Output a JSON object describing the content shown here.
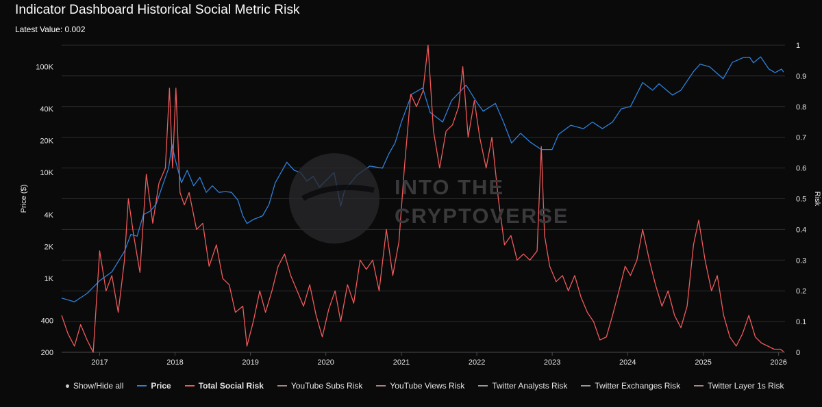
{
  "header": {
    "title": "Indicator Dashboard Historical Social Metric Risk",
    "latest_value": "Latest Value: 0.002"
  },
  "watermark": {
    "line1": "INTO THE",
    "line2": "CRYPTOVERSE"
  },
  "legend": {
    "show_hide_all": "Show/Hide all",
    "items": [
      {
        "label": "Price",
        "color": "#2f80d8",
        "bold": true
      },
      {
        "label": "Total Social Risk",
        "color": "#f05a5a",
        "bold": true
      },
      {
        "label": "YouTube Subs Risk",
        "color": "#b08484",
        "bold": false
      },
      {
        "label": "YouTube Views Risk",
        "color": "#b08484",
        "bold": false
      },
      {
        "label": "Twitter Analysts Risk",
        "color": "#9a9a9a",
        "bold": false
      },
      {
        "label": "Twitter Exchanges Risk",
        "color": "#9a9a9a",
        "bold": false
      },
      {
        "label": "Twitter Layer 1s Risk",
        "color": "#b08484",
        "bold": false
      }
    ]
  },
  "chart_data": {
    "type": "line",
    "title": "Indicator Dashboard Historical Social Metric Risk",
    "grid": true,
    "x_axis": {
      "type": "date",
      "range": [
        "2016-07-01",
        "2026-02-01"
      ],
      "tick_labels": [
        "2017",
        "2018",
        "2019",
        "2020",
        "2021",
        "2022",
        "2023",
        "2024",
        "2025",
        "2026"
      ]
    },
    "y_left": {
      "label": "Price ($)",
      "scale": "log",
      "range": [
        200,
        160000
      ],
      "tick_values": [
        200,
        400,
        1000,
        2000,
        4000,
        10000,
        20000,
        40000,
        100000
      ],
      "tick_labels": [
        "200",
        "400",
        "1K",
        "2K",
        "4K",
        "10K",
        "20K",
        "40K",
        "100K"
      ]
    },
    "y_right": {
      "label": "Risk",
      "scale": "linear",
      "range": [
        0,
        1
      ],
      "tick_values": [
        0,
        0.1,
        0.2,
        0.3,
        0.4,
        0.5,
        0.6,
        0.7,
        0.8,
        0.9,
        1
      ],
      "tick_labels": [
        "0",
        "0.1",
        "0.2",
        "0.3",
        "0.4",
        "0.5",
        "0.6",
        "0.7",
        "0.8",
        "0.9",
        "1"
      ]
    },
    "series": [
      {
        "name": "Price",
        "axis": "left",
        "color": "#2f80d8",
        "points": [
          [
            "2016-07-01",
            650
          ],
          [
            "2016-09-01",
            600
          ],
          [
            "2016-11-01",
            720
          ],
          [
            "2017-01-01",
            950
          ],
          [
            "2017-03-01",
            1150
          ],
          [
            "2017-05-01",
            1800
          ],
          [
            "2017-06-01",
            2600
          ],
          [
            "2017-07-01",
            2500
          ],
          [
            "2017-08-01",
            4000
          ],
          [
            "2017-09-01",
            4300
          ],
          [
            "2017-10-01",
            5000
          ],
          [
            "2017-11-01",
            7500
          ],
          [
            "2017-12-01",
            11000
          ],
          [
            "2017-12-17",
            18500
          ],
          [
            "2018-01-01",
            13500
          ],
          [
            "2018-02-01",
            8000
          ],
          [
            "2018-03-01",
            10500
          ],
          [
            "2018-04-01",
            7500
          ],
          [
            "2018-05-01",
            9000
          ],
          [
            "2018-06-01",
            6500
          ],
          [
            "2018-07-01",
            7500
          ],
          [
            "2018-08-01",
            6500
          ],
          [
            "2018-09-01",
            6600
          ],
          [
            "2018-10-01",
            6500
          ],
          [
            "2018-11-01",
            5500
          ],
          [
            "2018-11-25",
            3900
          ],
          [
            "2018-12-15",
            3300
          ],
          [
            "2019-01-15",
            3600
          ],
          [
            "2019-03-01",
            3900
          ],
          [
            "2019-04-01",
            5000
          ],
          [
            "2019-05-01",
            8000
          ],
          [
            "2019-06-26",
            12500
          ],
          [
            "2019-08-01",
            10500
          ],
          [
            "2019-09-01",
            10000
          ],
          [
            "2019-10-01",
            8300
          ],
          [
            "2019-11-01",
            9200
          ],
          [
            "2019-12-01",
            7300
          ],
          [
            "2020-02-10",
            10000
          ],
          [
            "2020-03-13",
            4800
          ],
          [
            "2020-04-01",
            6800
          ],
          [
            "2020-06-01",
            9500
          ],
          [
            "2020-08-01",
            11500
          ],
          [
            "2020-10-01",
            11000
          ],
          [
            "2020-11-01",
            15000
          ],
          [
            "2020-12-01",
            19000
          ],
          [
            "2021-01-01",
            30000
          ],
          [
            "2021-02-20",
            55000
          ],
          [
            "2021-04-14",
            63000
          ],
          [
            "2021-05-20",
            37000
          ],
          [
            "2021-07-20",
            30000
          ],
          [
            "2021-09-01",
            48000
          ],
          [
            "2021-11-10",
            67000
          ],
          [
            "2022-01-01",
            46000
          ],
          [
            "2022-02-01",
            38000
          ],
          [
            "2022-04-01",
            45000
          ],
          [
            "2022-05-10",
            30000
          ],
          [
            "2022-06-18",
            19000
          ],
          [
            "2022-08-01",
            23500
          ],
          [
            "2022-09-15",
            19500
          ],
          [
            "2022-11-09",
            16500
          ],
          [
            "2022-12-31",
            16500
          ],
          [
            "2023-02-01",
            23000
          ],
          [
            "2023-04-01",
            28000
          ],
          [
            "2023-06-01",
            26000
          ],
          [
            "2023-07-15",
            30000
          ],
          [
            "2023-09-01",
            26000
          ],
          [
            "2023-10-20",
            30000
          ],
          [
            "2023-12-01",
            40000
          ],
          [
            "2024-01-15",
            42000
          ],
          [
            "2024-03-14",
            71000
          ],
          [
            "2024-05-01",
            60000
          ],
          [
            "2024-06-01",
            69000
          ],
          [
            "2024-08-05",
            54000
          ],
          [
            "2024-09-15",
            60000
          ],
          [
            "2024-11-15",
            90000
          ],
          [
            "2024-12-17",
            106000
          ],
          [
            "2025-02-01",
            100000
          ],
          [
            "2025-04-08",
            77000
          ],
          [
            "2025-05-22",
            110000
          ],
          [
            "2025-07-14",
            122000
          ],
          [
            "2025-08-14",
            123000
          ],
          [
            "2025-09-01",
            109000
          ],
          [
            "2025-10-06",
            124000
          ],
          [
            "2025-11-15",
            95000
          ],
          [
            "2025-12-15",
            88000
          ],
          [
            "2026-01-15",
            95000
          ],
          [
            "2026-01-25",
            89000
          ]
        ]
      },
      {
        "name": "Total Social Risk",
        "axis": "right",
        "color": "#f05a5a",
        "points": [
          [
            "2016-07-01",
            0.12
          ],
          [
            "2016-08-01",
            0.06
          ],
          [
            "2016-09-01",
            0.02
          ],
          [
            "2016-10-01",
            0.09
          ],
          [
            "2016-11-01",
            0.04
          ],
          [
            "2016-12-01",
            0.0
          ],
          [
            "2017-01-01",
            0.33
          ],
          [
            "2017-02-01",
            0.2
          ],
          [
            "2017-03-01",
            0.25
          ],
          [
            "2017-04-01",
            0.13
          ],
          [
            "2017-05-01",
            0.3
          ],
          [
            "2017-05-20",
            0.5
          ],
          [
            "2017-06-15",
            0.38
          ],
          [
            "2017-07-15",
            0.26
          ],
          [
            "2017-08-15",
            0.58
          ],
          [
            "2017-09-15",
            0.42
          ],
          [
            "2017-10-15",
            0.55
          ],
          [
            "2017-11-15",
            0.6
          ],
          [
            "2017-12-05",
            0.86
          ],
          [
            "2017-12-20",
            0.6
          ],
          [
            "2018-01-05",
            0.86
          ],
          [
            "2018-01-25",
            0.52
          ],
          [
            "2018-02-15",
            0.48
          ],
          [
            "2018-03-10",
            0.52
          ],
          [
            "2018-04-15",
            0.4
          ],
          [
            "2018-05-15",
            0.42
          ],
          [
            "2018-06-15",
            0.28
          ],
          [
            "2018-07-20",
            0.35
          ],
          [
            "2018-08-20",
            0.24
          ],
          [
            "2018-09-20",
            0.22
          ],
          [
            "2018-10-20",
            0.13
          ],
          [
            "2018-11-25",
            0.15
          ],
          [
            "2018-12-15",
            0.02
          ],
          [
            "2019-01-15",
            0.1
          ],
          [
            "2019-02-15",
            0.2
          ],
          [
            "2019-03-15",
            0.13
          ],
          [
            "2019-04-15",
            0.2
          ],
          [
            "2019-05-15",
            0.28
          ],
          [
            "2019-06-15",
            0.32
          ],
          [
            "2019-07-15",
            0.25
          ],
          [
            "2019-08-15",
            0.2
          ],
          [
            "2019-09-15",
            0.15
          ],
          [
            "2019-10-15",
            0.22
          ],
          [
            "2019-11-15",
            0.12
          ],
          [
            "2019-12-15",
            0.05
          ],
          [
            "2020-01-15",
            0.14
          ],
          [
            "2020-02-15",
            0.2
          ],
          [
            "2020-03-13",
            0.1
          ],
          [
            "2020-04-15",
            0.22
          ],
          [
            "2020-05-15",
            0.16
          ],
          [
            "2020-06-15",
            0.3
          ],
          [
            "2020-07-15",
            0.27
          ],
          [
            "2020-08-15",
            0.3
          ],
          [
            "2020-09-15",
            0.2
          ],
          [
            "2020-10-20",
            0.4
          ],
          [
            "2020-11-20",
            0.25
          ],
          [
            "2020-12-20",
            0.36
          ],
          [
            "2021-01-15",
            0.6
          ],
          [
            "2021-02-15",
            0.84
          ],
          [
            "2021-03-15",
            0.8
          ],
          [
            "2021-04-15",
            0.85
          ],
          [
            "2021-05-10",
            1.0
          ],
          [
            "2021-06-05",
            0.72
          ],
          [
            "2021-07-05",
            0.6
          ],
          [
            "2021-08-05",
            0.72
          ],
          [
            "2021-09-05",
            0.74
          ],
          [
            "2021-10-05",
            0.8
          ],
          [
            "2021-10-25",
            0.93
          ],
          [
            "2021-11-20",
            0.7
          ],
          [
            "2021-12-20",
            0.82
          ],
          [
            "2022-01-15",
            0.7
          ],
          [
            "2022-02-15",
            0.6
          ],
          [
            "2022-03-15",
            0.7
          ],
          [
            "2022-04-15",
            0.5
          ],
          [
            "2022-05-15",
            0.35
          ],
          [
            "2022-06-15",
            0.38
          ],
          [
            "2022-07-15",
            0.3
          ],
          [
            "2022-08-15",
            0.32
          ],
          [
            "2022-09-15",
            0.3
          ],
          [
            "2022-10-20",
            0.33
          ],
          [
            "2022-11-09",
            0.67
          ],
          [
            "2022-11-25",
            0.38
          ],
          [
            "2022-12-20",
            0.28
          ],
          [
            "2023-01-20",
            0.23
          ],
          [
            "2023-02-20",
            0.25
          ],
          [
            "2023-03-20",
            0.2
          ],
          [
            "2023-04-20",
            0.25
          ],
          [
            "2023-05-20",
            0.18
          ],
          [
            "2023-06-20",
            0.13
          ],
          [
            "2023-07-20",
            0.1
          ],
          [
            "2023-08-20",
            0.04
          ],
          [
            "2023-09-20",
            0.05
          ],
          [
            "2023-10-20",
            0.12
          ],
          [
            "2023-11-20",
            0.2
          ],
          [
            "2023-12-20",
            0.28
          ],
          [
            "2024-01-15",
            0.25
          ],
          [
            "2024-02-15",
            0.3
          ],
          [
            "2024-03-14",
            0.4
          ],
          [
            "2024-04-15",
            0.3
          ],
          [
            "2024-05-15",
            0.22
          ],
          [
            "2024-06-15",
            0.15
          ],
          [
            "2024-07-15",
            0.2
          ],
          [
            "2024-08-15",
            0.12
          ],
          [
            "2024-09-15",
            0.08
          ],
          [
            "2024-10-15",
            0.15
          ],
          [
            "2024-11-15",
            0.35
          ],
          [
            "2024-12-10",
            0.43
          ],
          [
            "2025-01-10",
            0.3
          ],
          [
            "2025-02-10",
            0.2
          ],
          [
            "2025-03-10",
            0.25
          ],
          [
            "2025-04-10",
            0.12
          ],
          [
            "2025-05-10",
            0.05
          ],
          [
            "2025-06-10",
            0.02
          ],
          [
            "2025-07-10",
            0.06
          ],
          [
            "2025-08-10",
            0.12
          ],
          [
            "2025-09-10",
            0.05
          ],
          [
            "2025-10-10",
            0.03
          ],
          [
            "2025-11-10",
            0.02
          ],
          [
            "2025-12-10",
            0.01
          ],
          [
            "2026-01-10",
            0.01
          ],
          [
            "2026-01-25",
            0.002
          ]
        ]
      }
    ],
    "legend_position": "bottom"
  }
}
